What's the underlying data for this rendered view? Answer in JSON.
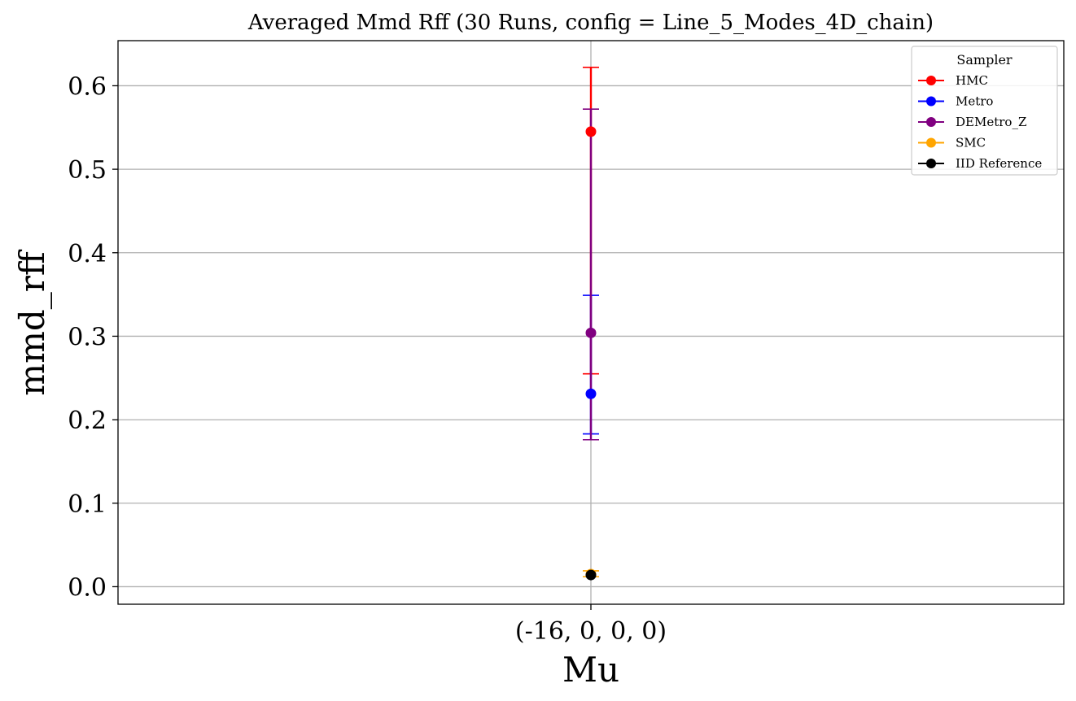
{
  "chart_data": {
    "type": "scatter",
    "title": "Averaged Mmd Rff (30 Runs, config = Line_5_Modes_4D_chain)",
    "xlabel": "Mu",
    "ylabel": "mmd_rff",
    "categories": [
      "(-16, 0, 0, 0)"
    ],
    "ylim": [
      -0.021,
      0.654
    ],
    "yticks": [
      "0.0",
      "0.1",
      "0.2",
      "0.3",
      "0.4",
      "0.5",
      "0.6"
    ],
    "grid": true,
    "legend": {
      "title": "Sampler",
      "position": "top-right"
    },
    "series": [
      {
        "name": "HMC",
        "color": "#ff0000",
        "values": [
          0.545
        ],
        "err_low": [
          0.255
        ],
        "err_high": [
          0.622
        ]
      },
      {
        "name": "Metro",
        "color": "#0000ff",
        "values": [
          0.231
        ],
        "err_low": [
          0.183
        ],
        "err_high": [
          0.349
        ]
      },
      {
        "name": "DEMetro_Z",
        "color": "#800080",
        "values": [
          0.304
        ],
        "err_low": [
          0.176
        ],
        "err_high": [
          0.572
        ]
      },
      {
        "name": "SMC",
        "color": "#ffa500",
        "values": [
          0.015
        ],
        "err_low": [
          0.012
        ],
        "err_high": [
          0.019
        ]
      },
      {
        "name": "IID Reference",
        "color": "#000000",
        "values": [
          0.014
        ],
        "err_low": [
          0.014
        ],
        "err_high": [
          0.014
        ]
      }
    ]
  }
}
